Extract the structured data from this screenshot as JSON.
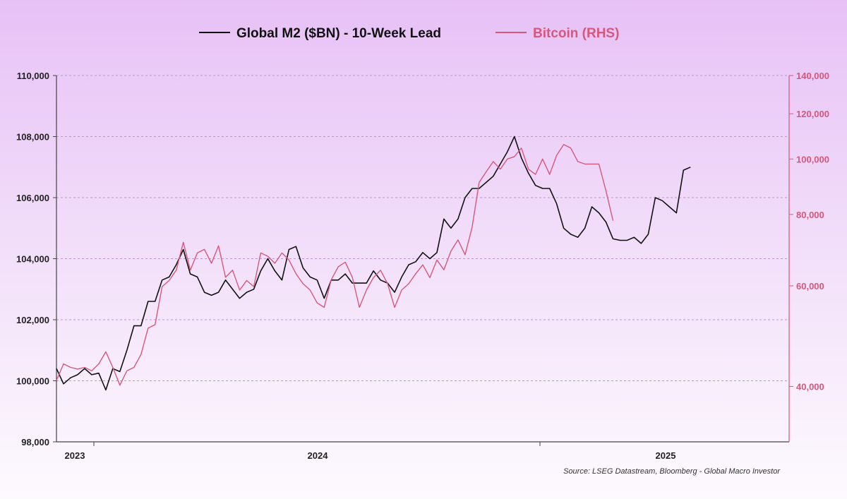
{
  "chart_data": {
    "type": "line",
    "title": "",
    "legend": {
      "placement": "top-center",
      "entries": [
        "Global M2 ($BN) - 10-Week Lead",
        "Bitcoin (RHS)"
      ]
    },
    "x_tick_labels": [
      "2023",
      "2024",
      "2025"
    ],
    "y_left": {
      "ticks": [
        98000,
        100000,
        102000,
        104000,
        106000,
        108000,
        110000
      ],
      "tick_labels": [
        "98,000",
        "100,000",
        "102,000",
        "104,000",
        "106,000",
        "108,000",
        "110,000"
      ],
      "range": [
        98000,
        110000
      ],
      "scale": "linear"
    },
    "y_right": {
      "ticks": [
        40000,
        60000,
        80000,
        100000,
        120000,
        140000
      ],
      "tick_labels": [
        "40,000",
        "60,000",
        "80,000",
        "100,000",
        "120,000",
        "140,000"
      ],
      "range": [
        32000,
        140000
      ],
      "scale": "log"
    },
    "grid": "horizontal dashed",
    "source": "Source: LSEG Datastream, Bloomberg - Global Macro Investor",
    "series": [
      {
        "name": "Global M2 ($BN) - 10-Week Lead",
        "axis": "left",
        "color": "#111111",
        "values": [
          100400,
          99900,
          100100,
          100200,
          100400,
          100200,
          100250,
          99700,
          100400,
          100300,
          101000,
          101800,
          101800,
          102600,
          102600,
          103300,
          103400,
          103800,
          104300,
          103500,
          103400,
          102900,
          102800,
          102900,
          103300,
          103000,
          102700,
          102900,
          103000,
          103600,
          104000,
          103600,
          103300,
          104300,
          104400,
          103700,
          103400,
          103300,
          102700,
          103300,
          103300,
          103500,
          103200,
          103200,
          103200,
          103600,
          103300,
          103200,
          102900,
          103400,
          103800,
          103900,
          104200,
          104000,
          104200,
          105300,
          105000,
          105300,
          106000,
          106300,
          106300,
          106500,
          106700,
          107100,
          107500,
          108000,
          107300,
          106800,
          106400,
          106300,
          106300,
          105800,
          105000,
          104800,
          104700,
          105000,
          105700,
          105500,
          105200,
          104650,
          104600,
          104600,
          104700,
          104500,
          104800,
          106000,
          105900,
          105700,
          105500,
          106900,
          107000
        ]
      },
      {
        "name": "Bitcoin (RHS)",
        "axis": "right",
        "color": "#d6587c",
        "values": [
          41000,
          43800,
          43200,
          42900,
          43200,
          42600,
          43800,
          46000,
          43200,
          40200,
          42600,
          43200,
          45500,
          50600,
          51300,
          59800,
          61300,
          63900,
          71500,
          63900,
          68500,
          69500,
          65700,
          70500,
          62100,
          63900,
          59000,
          61300,
          59800,
          68500,
          67600,
          65700,
          68500,
          66600,
          63000,
          60500,
          59000,
          56000,
          55000,
          61500,
          64800,
          66000,
          62100,
          55000,
          59000,
          62000,
          63900,
          60500,
          55000,
          59000,
          60500,
          63000,
          65300,
          62000,
          66600,
          64000,
          69000,
          72200,
          68000,
          76000,
          91000,
          95000,
          99000,
          96000,
          100000,
          101000,
          104500,
          96000,
          94000,
          100000,
          94000,
          101500,
          106000,
          104500,
          99000,
          98000,
          98000,
          98000,
          88000,
          78000
        ]
      }
    ]
  }
}
